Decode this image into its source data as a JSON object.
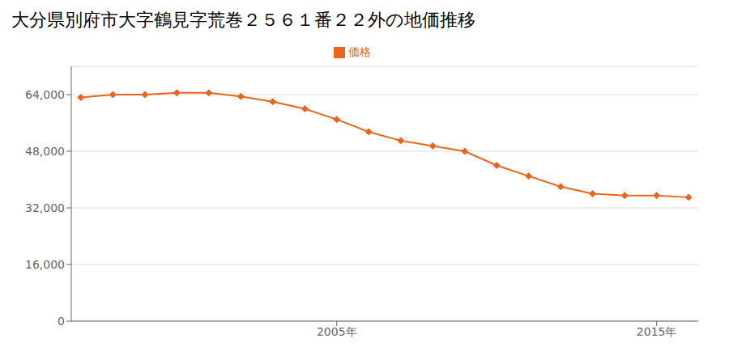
{
  "chart_data": {
    "type": "line",
    "title": "大分県別府市大字鶴見字荒巻２５６１番２２外の地価推移",
    "x": [
      1997,
      1998,
      1999,
      2000,
      2001,
      2002,
      2003,
      2004,
      2005,
      2006,
      2007,
      2008,
      2009,
      2010,
      2011,
      2012,
      2013,
      2014,
      2015,
      2016
    ],
    "series": [
      {
        "name": "価格",
        "color": "#e8651a",
        "marker": "diamond",
        "values": [
          63200,
          64000,
          64000,
          64500,
          64500,
          63500,
          62000,
          60000,
          57000,
          53500,
          51000,
          49500,
          48000,
          44000,
          41000,
          38000,
          36000,
          35500,
          35500,
          35000
        ]
      }
    ],
    "xlim": [
      1996.7,
      2016.3
    ],
    "xticks": [
      {
        "value": 2005,
        "label": "2005年"
      },
      {
        "value": 2015,
        "label": "2015年"
      }
    ],
    "ylim": [
      0,
      72000
    ],
    "yticks": [
      0,
      {
        "value": 16000,
        "label": "16,000"
      },
      {
        "value": 32000,
        "label": "32,000"
      },
      {
        "value": 48000,
        "label": "48,000"
      },
      {
        "value": 64000,
        "label": "64,000"
      }
    ],
    "grid": "y",
    "legend": "top"
  }
}
